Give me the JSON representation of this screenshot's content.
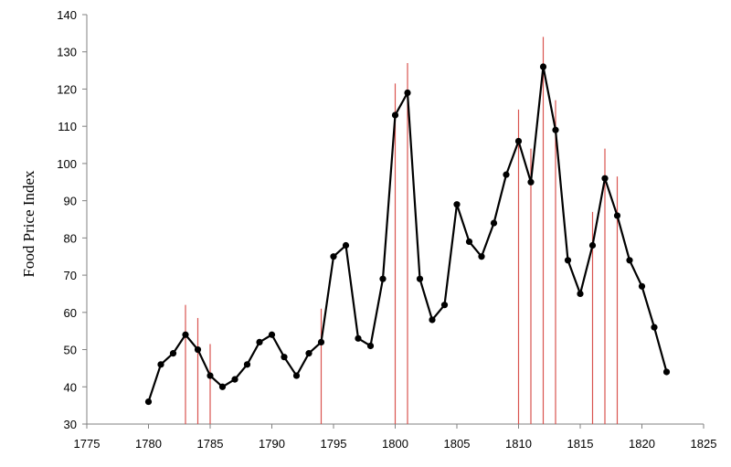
{
  "chart_data": {
    "type": "line",
    "title": "",
    "xlabel": "",
    "ylabel": "Food Price Index",
    "xlim": [
      1775,
      1825
    ],
    "ylim": [
      30,
      140
    ],
    "x_ticks": [
      1775,
      1780,
      1785,
      1790,
      1795,
      1800,
      1805,
      1810,
      1815,
      1820,
      1825
    ],
    "y_ticks": [
      30,
      40,
      50,
      60,
      70,
      80,
      90,
      100,
      110,
      120,
      130,
      140
    ],
    "grid": false,
    "colors": {
      "line": "#000000",
      "marker": "#000000",
      "spike": "#d9534f"
    },
    "series": [
      {
        "x": [
          1780,
          1781,
          1782,
          1783,
          1784,
          1785,
          1786,
          1787,
          1788,
          1789,
          1790,
          1791,
          1792,
          1793,
          1794,
          1795,
          1796,
          1797,
          1798,
          1799,
          1800,
          1801,
          1802,
          1803,
          1804,
          1805,
          1806,
          1807,
          1808,
          1809,
          1810,
          1811,
          1812,
          1813,
          1814,
          1815,
          1816,
          1817,
          1818,
          1819,
          1820,
          1821,
          1822
        ],
        "y": [
          36,
          46,
          49,
          54,
          50,
          43,
          40,
          42,
          46,
          52,
          54,
          48,
          43,
          49,
          52,
          75,
          78,
          53,
          51,
          69,
          113,
          119,
          69,
          58,
          62,
          89,
          79,
          75,
          84,
          97,
          106,
          95,
          126,
          109,
          74,
          65,
          78,
          96,
          86,
          74,
          67,
          56,
          44
        ]
      }
    ],
    "vertical_markers": [
      {
        "x": 1783,
        "y": 62
      },
      {
        "x": 1784,
        "y": 58.5
      },
      {
        "x": 1785,
        "y": 51.5
      },
      {
        "x": 1794,
        "y": 61
      },
      {
        "x": 1800,
        "y": 121.5
      },
      {
        "x": 1801,
        "y": 127
      },
      {
        "x": 1810,
        "y": 114.5
      },
      {
        "x": 1811,
        "y": 104
      },
      {
        "x": 1812,
        "y": 134
      },
      {
        "x": 1813,
        "y": 117
      },
      {
        "x": 1816,
        "y": 87
      },
      {
        "x": 1817,
        "y": 104
      },
      {
        "x": 1818,
        "y": 96.5
      }
    ]
  }
}
